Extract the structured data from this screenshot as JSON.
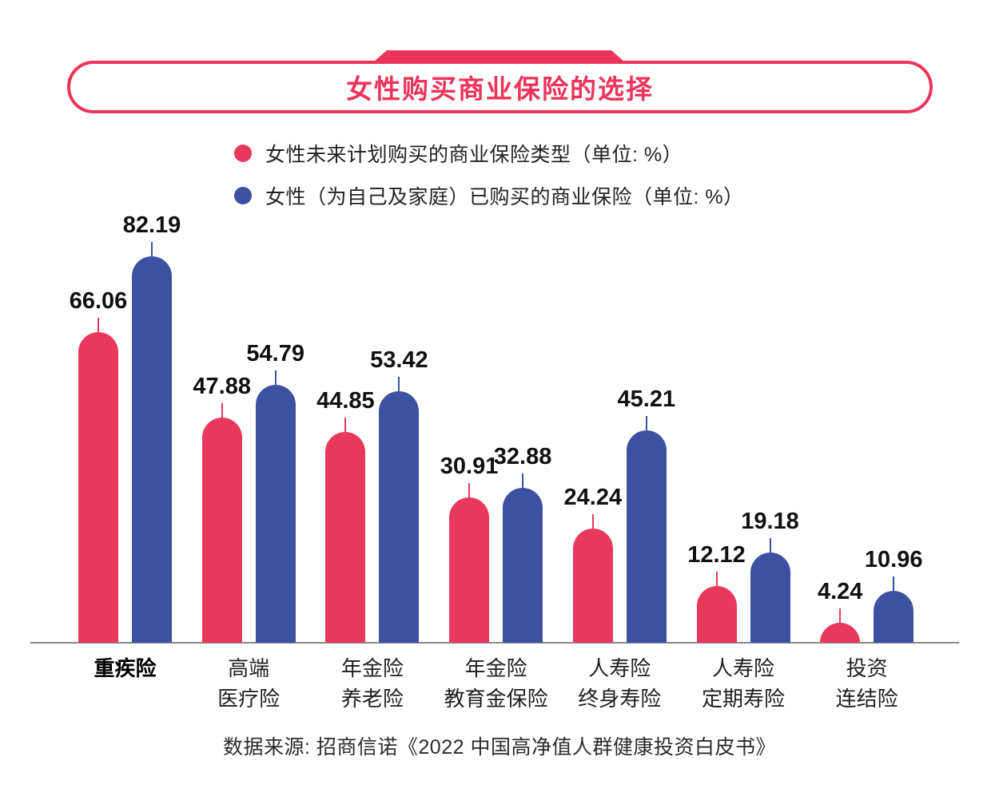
{
  "header": {
    "title": "女性购买商业保险的选择",
    "accent_color": "#EC3359"
  },
  "legend": {
    "items": [
      {
        "label": "女性未来计划购买的商业保险类型（单位: %）",
        "color": "#E8395C"
      },
      {
        "label": "女性（为自己及家庭）已购买的商业保险（单位: %）",
        "color": "#3D51A2"
      }
    ]
  },
  "chart_data": {
    "type": "bar",
    "title": "女性购买商业保险的选择",
    "categories": [
      "重疾险",
      "高端\n医疗险",
      "年金险\n养老险",
      "年金险\n教育金保险",
      "人寿险\n终身寿险",
      "人寿险\n定期寿险",
      "投资\n连结险"
    ],
    "bold_categories": [
      0
    ],
    "series": [
      {
        "name": "女性未来计划购买的商业保险类型",
        "unit": "%",
        "color": "#E8395C",
        "values": [
          66.06,
          47.88,
          44.85,
          30.91,
          24.24,
          12.12,
          4.24
        ]
      },
      {
        "name": "女性（为自己及家庭）已购买的商业保险",
        "unit": "%",
        "color": "#3D51A2",
        "values": [
          82.19,
          54.79,
          53.42,
          32.88,
          45.21,
          19.18,
          10.96
        ]
      }
    ],
    "ylim": [
      0,
      90
    ],
    "grid": false,
    "legend_position": "top",
    "value_labels": true,
    "axis_color": "#8a8a8a"
  },
  "footer": {
    "source": "数据来源: 招商信诺《2022 中国高净值人群健康投资白皮书》"
  }
}
